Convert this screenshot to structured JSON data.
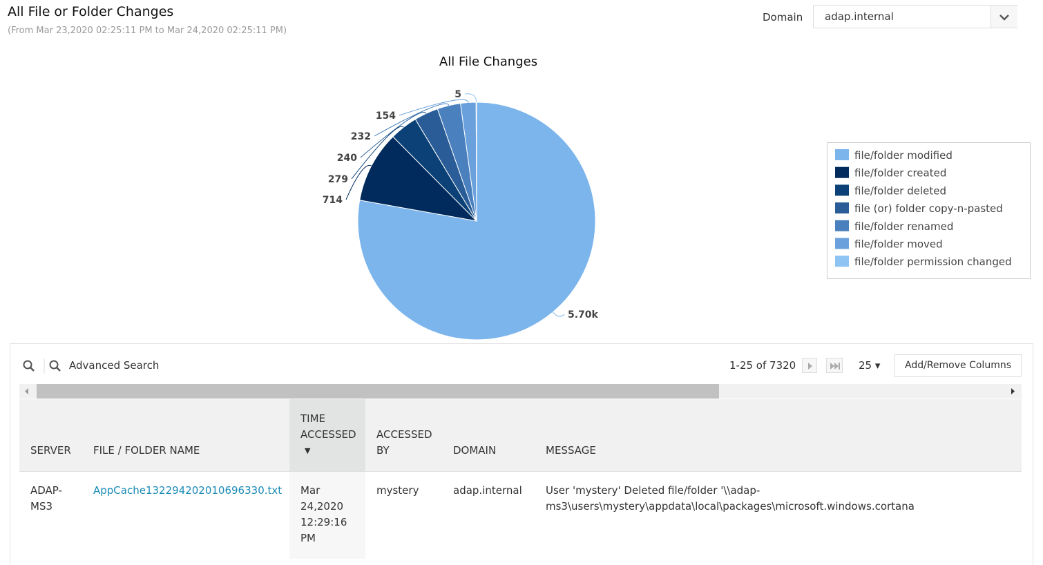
{
  "header": {
    "title": "All File or Folder Changes",
    "subtitle": "(From Mar 23,2020 02:25:11 PM to Mar 24,2020 02:25:11 PM)",
    "domain_label": "Domain",
    "domain_value": "adap.internal"
  },
  "chart_data": {
    "type": "pie",
    "title": "All File Changes",
    "categories": [
      "file/folder modified",
      "file/folder created",
      "file/folder deleted",
      "file (or) folder copy-n-pasted",
      "file/folder renamed",
      "file/folder moved",
      "file/folder permission changed"
    ],
    "values": [
      5696,
      714,
      279,
      240,
      232,
      154,
      5
    ],
    "value_labels": [
      "5.70k",
      "714",
      "279",
      "240",
      "232",
      "154",
      "5"
    ],
    "colors": [
      "#7cb5ec",
      "#002b5c",
      "#0b4176",
      "#2a5d97",
      "#4a80bd",
      "#6aa0dc",
      "#8ec4f4"
    ],
    "legend": "right"
  },
  "toolbar": {
    "search": "Advanced Search",
    "paging": "1-25 of 7320",
    "page_size": "25",
    "columns_button": "Add/Remove Columns"
  },
  "table": {
    "columns": [
      "SERVER",
      "FILE / FOLDER NAME",
      "TIME ACCESSED",
      "ACCESSED BY",
      "DOMAIN",
      "MESSAGE"
    ],
    "rows": [
      [
        "ADAP-MS3",
        "AppCache132294202010696330.txt",
        "Mar 24,2020 12:29:16 PM",
        "mystery",
        "adap.internal",
        "User 'mystery' Deleted file/folder '\\\\adap-ms3\\users\\mystery\\appdata\\local\\packages\\microsoft.windows.cortana"
      ]
    ]
  }
}
